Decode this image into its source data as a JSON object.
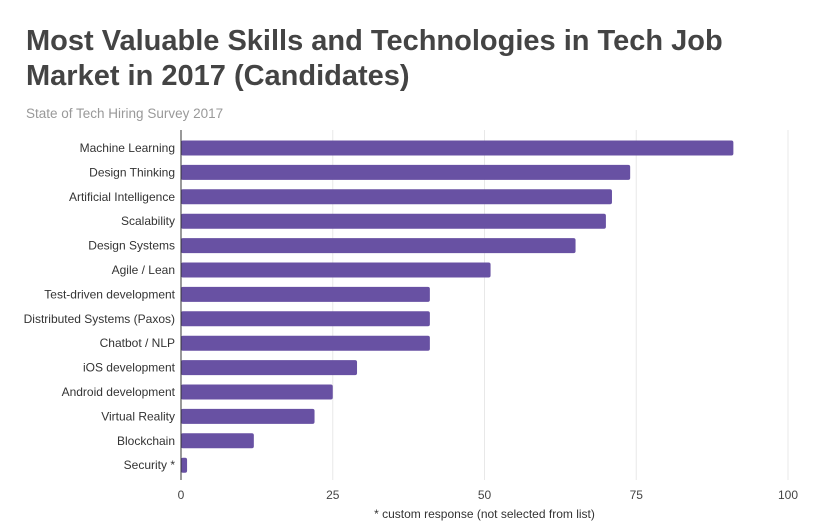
{
  "chart_data": {
    "type": "bar",
    "orientation": "horizontal",
    "title": "Most Valuable Skills and Technologies in Tech Job Market in 2017 (Candidates)",
    "subtitle": "State of Tech Hiring Survey 2017",
    "xlabel": "* custom response (not selected from list)",
    "ylabel": "",
    "xlim": [
      0,
      100
    ],
    "xticks": [
      0,
      25,
      50,
      75,
      100
    ],
    "grid": true,
    "categories": [
      "Machine Learning",
      "Design Thinking",
      "Artificial Intelligence",
      "Scalability",
      "Design Systems",
      "Agile / Lean",
      "Test-driven development",
      "Distributed Systems (Paxos)",
      "Chatbot / NLP",
      "iOS development",
      "Android development",
      "Virtual Reality",
      "Blockchain",
      "Security *"
    ],
    "values": [
      91,
      74,
      71,
      70,
      65,
      51,
      41,
      41,
      41,
      29,
      25,
      22,
      12,
      1
    ],
    "colors": {
      "bar": "#6851a3",
      "grid": "#e8e8e8",
      "axis": "#333333"
    }
  }
}
